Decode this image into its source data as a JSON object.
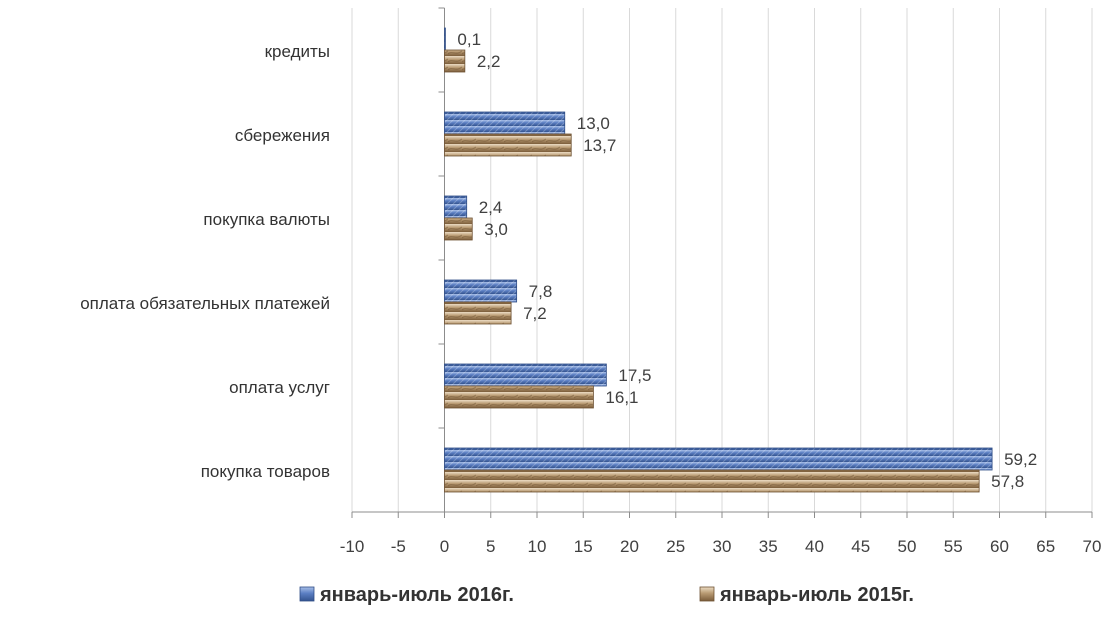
{
  "chart_data": {
    "type": "bar",
    "orientation": "horizontal",
    "categories": [
      "покупка товаров",
      "оплата услуг",
      "оплата обязательных платежей",
      "покупка валюты",
      "сбережения",
      "кредиты"
    ],
    "series": [
      {
        "name": "январь-июль 2016г.",
        "values": [
          59.2,
          17.5,
          7.8,
          2.4,
          13.0,
          0.1
        ],
        "labels": [
          "59,2",
          "17,5",
          "7,8",
          "2,4",
          "13,0",
          "0,1"
        ],
        "color": "#5b7fc3",
        "legend_icon": "blue-square-icon"
      },
      {
        "name": "январь-июль 2015г.",
        "values": [
          57.8,
          16.1,
          7.2,
          3.0,
          13.7,
          2.2
        ],
        "labels": [
          "57,8",
          "16,1",
          "7,2",
          "3,0",
          "13,7",
          "2,2"
        ],
        "color": "#b89a72",
        "legend_icon": "tan-square-icon"
      }
    ],
    "xlim": [
      -10,
      70
    ],
    "xticks": [
      -10,
      -5,
      0,
      5,
      10,
      15,
      20,
      25,
      30,
      35,
      40,
      45,
      50,
      55,
      60,
      65,
      70
    ],
    "grid": true,
    "legend_position": "bottom"
  }
}
